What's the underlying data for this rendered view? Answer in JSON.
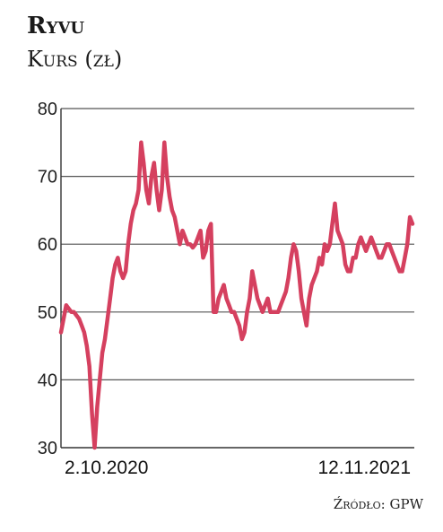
{
  "header": {
    "title": "Ryvu",
    "subtitle": "Kurs (zł)"
  },
  "source": "Źródło: GPW",
  "chart_data": {
    "type": "line",
    "title": "Ryvu",
    "ylabel": "Kurs (zł)",
    "xlabel": "",
    "ylim": [
      30,
      80
    ],
    "yticks": [
      30,
      40,
      50,
      60,
      70,
      80
    ],
    "xtick_labels": [
      "2.10.2020",
      "12.11.2021"
    ],
    "grid": "horizontal",
    "line_color": "#d5405f",
    "series": [
      {
        "name": "",
        "values": [
          47,
          49,
          51,
          50.5,
          50,
          50,
          49.5,
          49,
          48,
          47,
          45,
          42,
          35,
          30,
          36,
          40,
          44,
          46,
          49,
          52,
          55,
          57,
          58,
          56,
          55,
          56,
          60,
          63,
          65,
          66,
          68,
          75,
          72,
          68,
          66,
          70,
          72,
          68,
          65,
          68,
          75,
          70,
          67,
          65,
          64,
          62,
          60,
          62,
          61,
          60,
          60,
          59.5,
          60,
          61,
          62,
          58,
          59,
          62,
          63,
          50,
          50,
          52,
          53,
          54,
          52,
          51,
          50,
          50,
          49,
          48,
          46,
          47,
          50,
          52,
          56,
          54,
          52,
          51,
          50,
          51,
          52,
          50,
          50,
          50,
          50,
          51,
          52,
          53,
          55,
          58,
          60,
          59,
          56,
          52,
          50,
          48,
          52,
          54,
          55,
          56,
          58,
          57,
          60,
          59,
          60,
          63,
          66,
          62,
          61,
          60,
          57,
          56,
          56,
          58,
          58,
          60,
          61,
          60,
          59,
          60,
          61,
          60,
          59,
          58,
          58,
          59,
          60,
          60,
          59,
          58,
          57,
          56,
          56,
          58,
          60,
          64,
          63
        ]
      }
    ]
  }
}
